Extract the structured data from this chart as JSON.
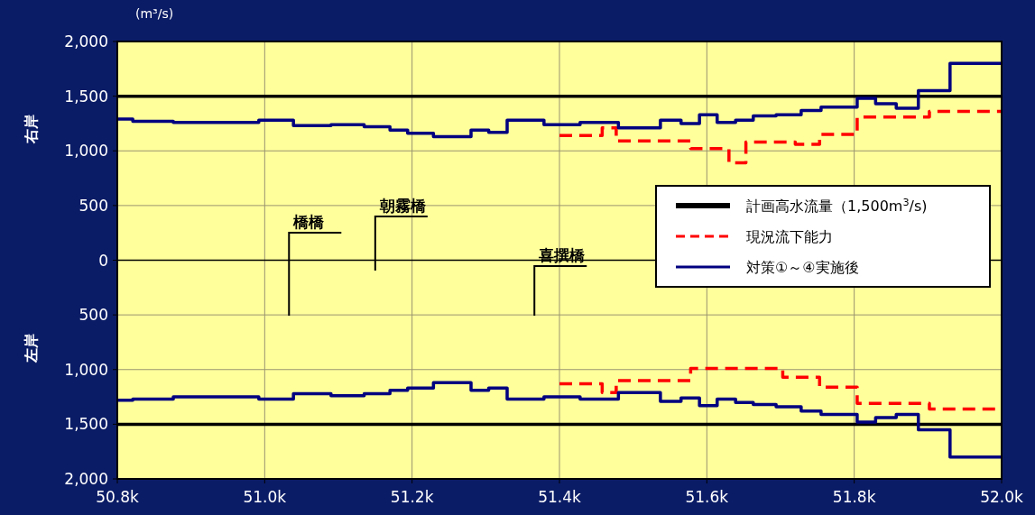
{
  "chart_data": {
    "type": "step",
    "ylabel": "(m³/s)",
    "xlim": [
      50.8,
      52.0
    ],
    "xticks": [
      {
        "value": 50.8,
        "label": "50.8k"
      },
      {
        "value": 51.0,
        "label": "51.0k"
      },
      {
        "value": 51.2,
        "label": "51.2k"
      },
      {
        "value": 51.4,
        "label": "51.4k"
      },
      {
        "value": 51.6,
        "label": "51.6k"
      },
      {
        "value": 51.8,
        "label": "51.8k"
      },
      {
        "value": 52.0,
        "label": "52.0k"
      }
    ],
    "ylim": [
      -2000,
      2000
    ],
    "yticks": [
      {
        "value": 2000,
        "label": "2,000"
      },
      {
        "value": 1500,
        "label": "1,500"
      },
      {
        "value": 1000,
        "label": "1,000"
      },
      {
        "value": 500,
        "label": "500"
      },
      0,
      {
        "value": -500,
        "label": "500"
      },
      {
        "value": -1000,
        "label": "1,000"
      },
      {
        "value": -1500,
        "label": "1,500"
      },
      {
        "value": -2000,
        "label": "2,000"
      }
    ],
    "grid": true,
    "legend": "right",
    "series": [
      {
        "name": "計画高水流量（1,500m$^{3}$/s)",
        "type": "line",
        "color": "#000000",
        "line_style": "solid",
        "x": [
          50.8,
          52.0
        ],
        "values": [
          1500,
          1500
        ]
      },
      {
        "type": "line",
        "color": "#000000",
        "line_style": "solid",
        "x": [
          50.8,
          52.0
        ],
        "values": [
          -1500,
          -1500
        ]
      },
      {
        "name": "現況流下能力",
        "color": "#ff0000",
        "line_style": "dashed",
        "x": [
          51.4,
          51.458,
          51.477,
          51.578,
          51.63,
          51.653,
          51.72,
          51.753,
          51.804,
          51.902,
          52.0
        ],
        "values": [
          1140,
          1210,
          1090,
          1020,
          890,
          1080,
          1060,
          1150,
          1310,
          1360,
          1360
        ]
      },
      {
        "color": "#ff0000",
        "line_style": "dashed",
        "x": [
          51.4,
          51.458,
          51.477,
          51.578,
          51.703,
          51.753,
          51.804,
          51.902,
          52.0
        ],
        "values": [
          -1130,
          -1210,
          -1100,
          -990,
          -1070,
          -1160,
          -1310,
          -1360,
          -1360
        ]
      },
      {
        "name": "対策①～④実施後",
        "color": "#000080",
        "line_style": "solid",
        "x": [
          50.8,
          50.821,
          50.876,
          50.992,
          51.039,
          51.09,
          51.135,
          51.17,
          51.194,
          51.229,
          51.28,
          51.304,
          51.329,
          51.379,
          51.428,
          51.48,
          51.537,
          51.565,
          51.59,
          51.614,
          51.639,
          51.663,
          51.694,
          51.728,
          51.755,
          51.804,
          51.829,
          51.857,
          51.887,
          51.93,
          52.0
        ],
        "values": [
          1290,
          1270,
          1260,
          1280,
          1230,
          1240,
          1220,
          1190,
          1160,
          1130,
          1190,
          1170,
          1280,
          1240,
          1260,
          1210,
          1280,
          1250,
          1330,
          1260,
          1280,
          1320,
          1330,
          1370,
          1400,
          1480,
          1430,
          1390,
          1550,
          1800,
          1800
        ]
      },
      {
        "color": "#000080",
        "line_style": "solid",
        "x": [
          50.8,
          50.821,
          50.876,
          50.992,
          51.039,
          51.09,
          51.135,
          51.17,
          51.194,
          51.229,
          51.28,
          51.304,
          51.329,
          51.379,
          51.428,
          51.48,
          51.537,
          51.565,
          51.59,
          51.614,
          51.639,
          51.663,
          51.694,
          51.728,
          51.755,
          51.804,
          51.829,
          51.857,
          51.887,
          51.93,
          52.0
        ],
        "values": [
          -1280,
          -1270,
          -1250,
          -1270,
          -1220,
          -1240,
          -1220,
          -1190,
          -1170,
          -1120,
          -1190,
          -1170,
          -1270,
          -1250,
          -1270,
          -1210,
          -1290,
          -1260,
          -1330,
          -1270,
          -1300,
          -1320,
          -1340,
          -1380,
          -1410,
          -1480,
          -1440,
          -1410,
          -1550,
          -1800,
          -1800
        ]
      }
    ],
    "annotations": [
      "右岸",
      "左岸"
    ],
    "ref_lines": [
      {
        "axis": "x",
        "value": 51.033,
        "label": "橋橋"
      },
      {
        "axis": "x",
        "value": 51.15,
        "label": "朝霧橋"
      },
      {
        "axis": "x",
        "value": 51.366,
        "label": "喜撰橋"
      }
    ]
  }
}
